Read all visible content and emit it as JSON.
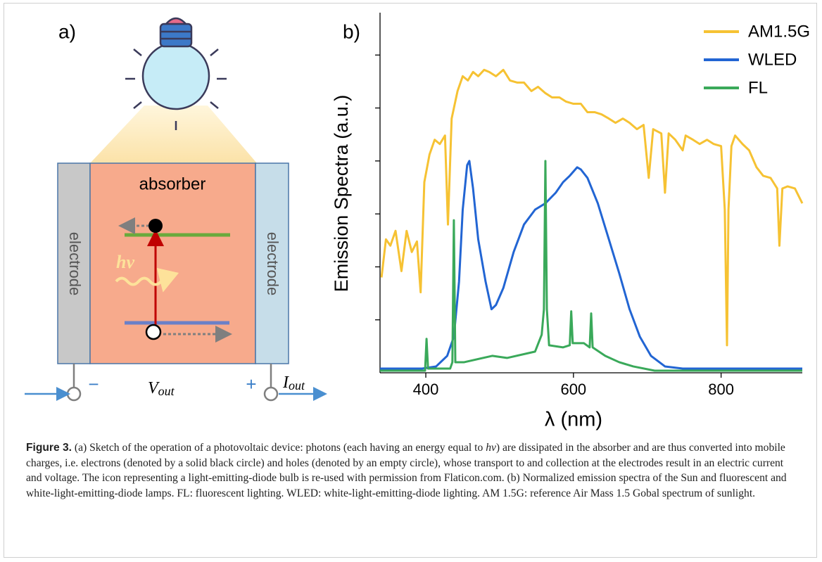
{
  "panel_a": {
    "label": "a)",
    "absorber": "absorber",
    "left_electrode": "electrode",
    "right_electrode": "electrode",
    "photon": "hν",
    "minus": "−",
    "plus": "+",
    "voltage": {
      "symbol": "V",
      "subscript": "out"
    },
    "current": {
      "symbol": "I",
      "subscript": "out"
    }
  },
  "chart_data": {
    "type": "line",
    "panel_label": "b)",
    "x_label": "λ (nm)",
    "y_label": "Emission Spectra (a.u.)",
    "xlim": [
      338,
      910
    ],
    "xticks": [
      400,
      600,
      800
    ],
    "ylim": [
      0,
      1.7
    ],
    "yticks": [
      0.25,
      0.5,
      0.75,
      1.0,
      1.25,
      1.5
    ],
    "legend": "upper right",
    "series": [
      {
        "name": "AM1.5G",
        "color": "#f6c233",
        "x": [
          340,
          346,
          352,
          359,
          367,
          374,
          381,
          388,
          393,
          398,
          405,
          412,
          419,
          426,
          430,
          435,
          443,
          450,
          457,
          464,
          471,
          479,
          486,
          495,
          505,
          514,
          524,
          533,
          543,
          552,
          562,
          571,
          581,
          590,
          600,
          610,
          619,
          629,
          638,
          648,
          657,
          667,
          676,
          686,
          695,
          702,
          708,
          719,
          724,
          729,
          738,
          748,
          752,
          762,
          771,
          781,
          790,
          800,
          805,
          808,
          810,
          814,
          819,
          829,
          838,
          848,
          857,
          867,
          876,
          879,
          883,
          890,
          900,
          910
        ],
        "values": [
          0.45,
          0.63,
          0.6,
          0.67,
          0.48,
          0.67,
          0.57,
          0.62,
          0.38,
          0.9,
          1.03,
          1.1,
          1.08,
          1.12,
          0.7,
          1.2,
          1.33,
          1.4,
          1.38,
          1.42,
          1.4,
          1.43,
          1.42,
          1.4,
          1.43,
          1.38,
          1.37,
          1.37,
          1.33,
          1.35,
          1.32,
          1.3,
          1.3,
          1.28,
          1.27,
          1.27,
          1.23,
          1.23,
          1.22,
          1.2,
          1.18,
          1.2,
          1.18,
          1.15,
          1.17,
          0.92,
          1.15,
          1.13,
          0.85,
          1.13,
          1.1,
          1.05,
          1.12,
          1.1,
          1.08,
          1.1,
          1.08,
          1.07,
          0.77,
          0.13,
          0.77,
          1.07,
          1.12,
          1.08,
          1.05,
          0.97,
          0.93,
          0.92,
          0.87,
          0.6,
          0.87,
          0.88,
          0.87,
          0.8
        ]
      },
      {
        "name": "WLED",
        "color": "#2265d3",
        "x": [
          338,
          395,
          414,
          429,
          438,
          445,
          450,
          456,
          459,
          464,
          471,
          481,
          489,
          495,
          505,
          519,
          533,
          548,
          562,
          576,
          586,
          595,
          605,
          610,
          619,
          633,
          648,
          662,
          676,
          690,
          705,
          724,
          748,
          910
        ],
        "values": [
          0.02,
          0.02,
          0.03,
          0.08,
          0.17,
          0.43,
          0.77,
          0.98,
          1.0,
          0.87,
          0.63,
          0.43,
          0.3,
          0.32,
          0.4,
          0.57,
          0.7,
          0.77,
          0.8,
          0.85,
          0.9,
          0.93,
          0.97,
          0.96,
          0.92,
          0.8,
          0.63,
          0.47,
          0.3,
          0.17,
          0.08,
          0.03,
          0.02,
          0.02
        ]
      },
      {
        "name": "FL",
        "color": "#3aa95a",
        "x": [
          338,
          395,
          399,
          401,
          403,
          433,
          436,
          438,
          440,
          452,
          490,
          510,
          548,
          557,
          560,
          562,
          564,
          567,
          586,
          595,
          597,
          599,
          614,
          622,
          624,
          626,
          643,
          662,
          681,
          710,
          910
        ],
        "values": [
          0.01,
          0.01,
          0.01,
          0.16,
          0.02,
          0.02,
          0.05,
          0.72,
          0.05,
          0.05,
          0.08,
          0.07,
          0.1,
          0.18,
          0.3,
          1.0,
          0.3,
          0.13,
          0.12,
          0.13,
          0.29,
          0.14,
          0.14,
          0.12,
          0.28,
          0.12,
          0.08,
          0.05,
          0.03,
          0.01,
          0.01
        ]
      }
    ]
  },
  "caption": {
    "label": "Figure 3.",
    "text_1": "(a) Sketch of the operation of a photovoltaic device: photons (each having an energy equal to",
    "symbol": "hν",
    "text_2": ") are dissipated in the absorber and are thus converted into mobile charges, i.e. electrons (denoted by a solid black circle) and holes (denoted by an empty circle), whose transport to and collection at the electrodes result in an electric current and voltage. The icon representing a light-emitting-diode bulb is re-used with permission from Flaticon.com. (b) Normalized emission spectra of the Sun and fluorescent and white-light-emitting-diode lamps. FL: fluorescent lighting. WLED: white-light-emitting-diode lighting. AM 1.5G: reference Air Mass 1.5 Gobal spectrum of sunlight."
  }
}
